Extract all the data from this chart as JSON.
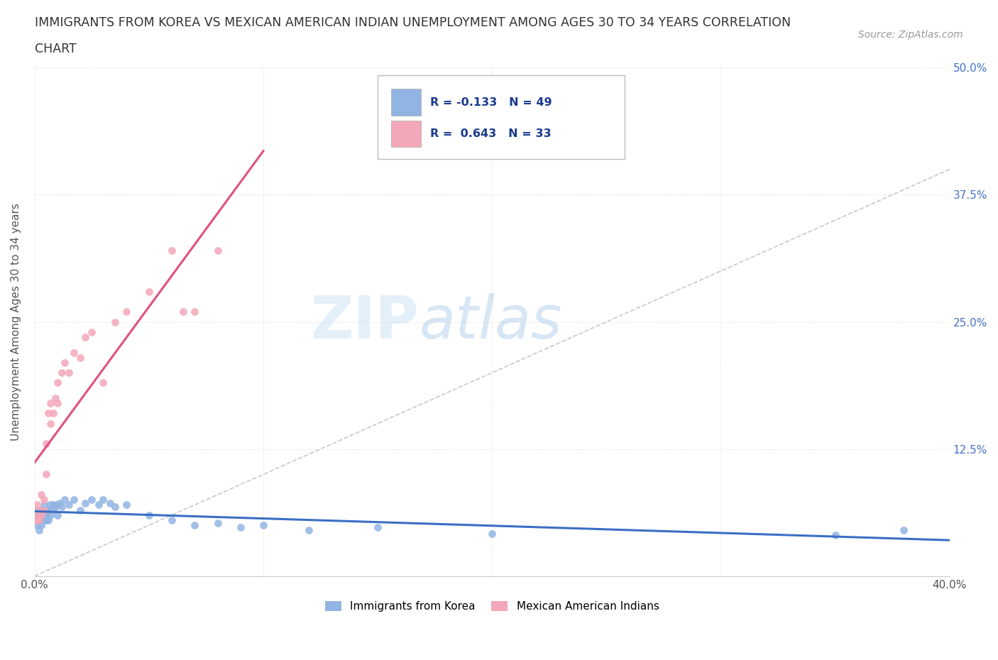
{
  "title_line1": "IMMIGRANTS FROM KOREA VS MEXICAN AMERICAN INDIAN UNEMPLOYMENT AMONG AGES 30 TO 34 YEARS CORRELATION",
  "title_line2": "CHART",
  "source": "Source: ZipAtlas.com",
  "ylabel": "Unemployment Among Ages 30 to 34 years",
  "xlim": [
    0.0,
    0.4
  ],
  "ylim": [
    0.0,
    0.5
  ],
  "korea_color": "#92b4e3",
  "korea_line_color": "#3a6fc4",
  "mexican_color": "#f4a7b9",
  "mexican_line_color": "#e05080",
  "korea_label": "Immigrants from Korea",
  "mexican_label": "Mexican American Indians",
  "R_korea": -0.133,
  "N_korea": 49,
  "R_mexican": 0.643,
  "N_mexican": 33,
  "legend_text_color": "#1a3a8c",
  "right_tick_color": "#4472c4",
  "watermark_zip": "ZIP",
  "watermark_atlas": "atlas",
  "background_color": "#ffffff",
  "grid_color": "#dddddd",
  "korea_x": [
    0.0,
    0.001,
    0.001,
    0.001,
    0.002,
    0.002,
    0.002,
    0.003,
    0.003,
    0.003,
    0.004,
    0.004,
    0.004,
    0.005,
    0.005,
    0.005,
    0.006,
    0.006,
    0.007,
    0.007,
    0.008,
    0.008,
    0.009,
    0.01,
    0.01,
    0.011,
    0.012,
    0.013,
    0.015,
    0.017,
    0.02,
    0.022,
    0.025,
    0.028,
    0.03,
    0.033,
    0.035,
    0.04,
    0.05,
    0.06,
    0.07,
    0.08,
    0.09,
    0.1,
    0.12,
    0.15,
    0.2,
    0.35,
    0.38
  ],
  "korea_y": [
    0.055,
    0.05,
    0.06,
    0.065,
    0.045,
    0.055,
    0.06,
    0.05,
    0.06,
    0.065,
    0.055,
    0.06,
    0.07,
    0.055,
    0.06,
    0.065,
    0.055,
    0.065,
    0.06,
    0.07,
    0.065,
    0.07,
    0.068,
    0.06,
    0.07,
    0.072,
    0.068,
    0.075,
    0.07,
    0.075,
    0.065,
    0.072,
    0.075,
    0.07,
    0.075,
    0.072,
    0.068,
    0.07,
    0.06,
    0.055,
    0.05,
    0.052,
    0.048,
    0.05,
    0.045,
    0.048,
    0.042,
    0.04,
    0.045
  ],
  "mexican_x": [
    0.001,
    0.001,
    0.001,
    0.002,
    0.002,
    0.003,
    0.003,
    0.004,
    0.004,
    0.005,
    0.005,
    0.006,
    0.007,
    0.007,
    0.008,
    0.009,
    0.01,
    0.01,
    0.012,
    0.013,
    0.015,
    0.017,
    0.02,
    0.022,
    0.025,
    0.03,
    0.035,
    0.04,
    0.05,
    0.06,
    0.065,
    0.07,
    0.08
  ],
  "mexican_y": [
    0.055,
    0.06,
    0.07,
    0.055,
    0.065,
    0.06,
    0.08,
    0.065,
    0.075,
    0.1,
    0.13,
    0.16,
    0.15,
    0.17,
    0.16,
    0.175,
    0.17,
    0.19,
    0.2,
    0.21,
    0.2,
    0.22,
    0.215,
    0.235,
    0.24,
    0.19,
    0.25,
    0.26,
    0.28,
    0.32,
    0.26,
    0.26,
    0.32
  ]
}
